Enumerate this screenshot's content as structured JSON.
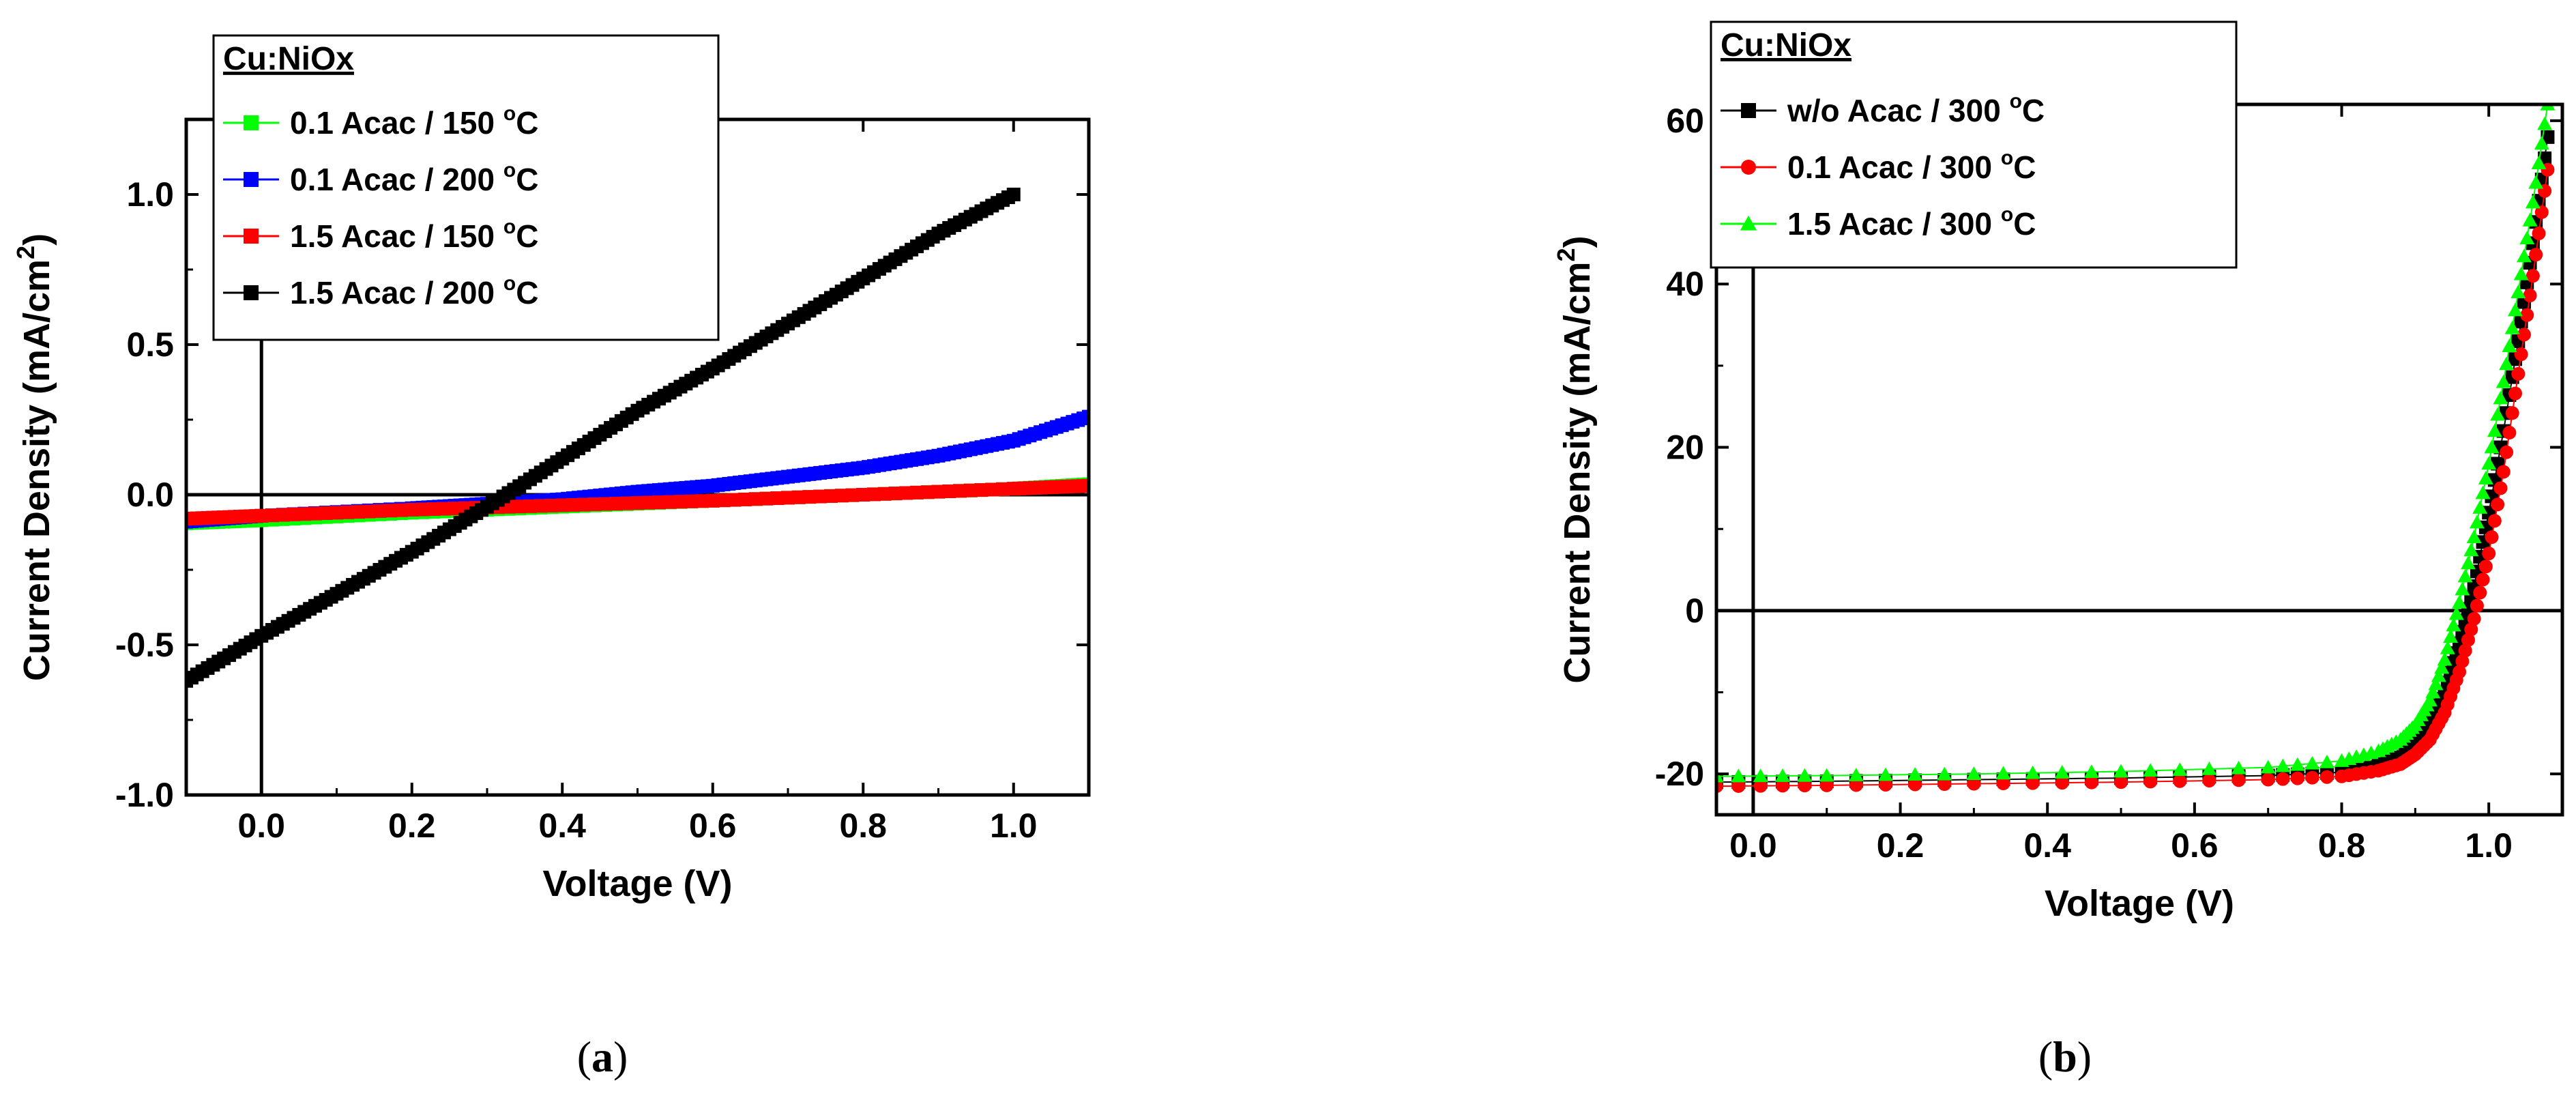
{
  "chart_data": [
    {
      "type": "line",
      "panel": "a",
      "xlabel": "Voltage (V)",
      "ylabel": "Current Density (mA/cm",
      "ylabel_sup": "2",
      "ylabel_close": ")",
      "xlim": [
        -0.1,
        1.1
      ],
      "ylim": [
        -1.0,
        1.25
      ],
      "xticks": [
        0.0,
        0.2,
        0.4,
        0.6,
        0.8,
        1.0
      ],
      "xtick_labels": [
        "0.0",
        "0.2",
        "0.4",
        "0.6",
        "0.8",
        "1.0"
      ],
      "yticks": [
        -1.0,
        -0.5,
        0.0,
        0.5,
        1.0
      ],
      "ytick_labels": [
        "-1.0",
        "-0.5",
        "0.0",
        "0.5",
        "1.0"
      ],
      "legend_title": "Cu:NiOx",
      "legend_position": "top-left",
      "series": [
        {
          "name": "0.1 Acac / 150 °C",
          "label_main": "0.1 Acac / 150 ",
          "label_sup": "o",
          "label_unit": "C",
          "color": "#00ff00",
          "marker": "square",
          "x": [
            -0.1,
            0.0,
            0.2,
            0.4,
            0.6,
            0.8,
            1.0,
            1.1
          ],
          "y": [
            -0.095,
            -0.085,
            -0.06,
            -0.04,
            -0.02,
            0.0,
            0.02,
            0.035
          ]
        },
        {
          "name": "0.1 Acac / 200 °C",
          "label_main": "0.1 Acac / 200 ",
          "label_sup": "o",
          "label_unit": "C",
          "color": "#0000ff",
          "marker": "square",
          "x": [
            -0.1,
            0.0,
            0.2,
            0.3,
            0.4,
            0.5,
            0.6,
            0.7,
            0.8,
            0.9,
            1.0,
            1.1
          ],
          "y": [
            -0.09,
            -0.07,
            -0.045,
            -0.03,
            -0.015,
            0.01,
            0.03,
            0.06,
            0.09,
            0.13,
            0.18,
            0.26
          ]
        },
        {
          "name": "1.5 Acac / 150 °C",
          "label_main": "1.5 Acac / 150 ",
          "label_sup": "o",
          "label_unit": "C",
          "color": "#ff0000",
          "marker": "square",
          "x": [
            -0.1,
            0.0,
            0.2,
            0.4,
            0.6,
            0.8,
            1.0,
            1.1
          ],
          "y": [
            -0.08,
            -0.07,
            -0.05,
            -0.035,
            -0.02,
            0.0,
            0.02,
            0.03
          ]
        },
        {
          "name": "1.5 Acac / 200 °C",
          "label_main": "1.5 Acac / 200 ",
          "label_sup": "o",
          "label_unit": "C",
          "color": "#000000",
          "marker": "square",
          "x": [
            -0.1,
            0.0,
            0.1,
            0.2,
            0.3,
            0.4,
            0.5,
            0.6,
            0.7,
            0.8,
            0.9,
            1.0
          ],
          "y": [
            -0.62,
            -0.47,
            -0.33,
            -0.19,
            -0.04,
            0.12,
            0.28,
            0.42,
            0.57,
            0.72,
            0.87,
            1.0
          ]
        }
      ]
    },
    {
      "type": "line",
      "panel": "b",
      "xlabel": "Voltage (V)",
      "ylabel": "Current Density (mA/cm",
      "ylabel_sup": "2",
      "ylabel_close": ")",
      "xlim": [
        -0.05,
        1.1
      ],
      "ylim": [
        -25,
        62
      ],
      "xticks": [
        0.0,
        0.2,
        0.4,
        0.6,
        0.8,
        1.0
      ],
      "xtick_labels": [
        "0.0",
        "0.2",
        "0.4",
        "0.6",
        "0.8",
        "1.0"
      ],
      "yticks": [
        -20,
        0,
        20,
        40,
        60
      ],
      "ytick_labels": [
        "-20",
        "0",
        "20",
        "40",
        "60"
      ],
      "legend_title": "Cu:NiOx",
      "legend_position": "top-left",
      "series": [
        {
          "name": "w/o Acac / 300 °C",
          "label_main": "w/o Acac / 300 ",
          "label_sup": "o",
          "label_unit": "C",
          "color": "#000000",
          "marker": "square",
          "x": [
            -0.05,
            0.1,
            0.3,
            0.5,
            0.7,
            0.8,
            0.85,
            0.88,
            0.9,
            0.92,
            0.94,
            0.96,
            0.98,
            1.0,
            1.02,
            1.04,
            1.06,
            1.08
          ],
          "y": [
            -21.0,
            -20.9,
            -20.7,
            -20.5,
            -20.2,
            -19.8,
            -19.0,
            -18.0,
            -16.5,
            -14.0,
            -10.0,
            -4.0,
            3.0,
            12.0,
            22.0,
            33.0,
            45.0,
            58.0
          ]
        },
        {
          "name": "0.1 Acac / 300 °C",
          "label_main": "0.1 Acac / 300 ",
          "label_sup": "o",
          "label_unit": "C",
          "color": "#ff0000",
          "marker": "circle",
          "x": [
            -0.05,
            0.1,
            0.3,
            0.5,
            0.7,
            0.8,
            0.85,
            0.88,
            0.9,
            0.92,
            0.94,
            0.96,
            0.98,
            1.0,
            1.02,
            1.04,
            1.06,
            1.08
          ],
          "y": [
            -21.5,
            -21.4,
            -21.2,
            -21.0,
            -20.7,
            -20.3,
            -19.6,
            -18.8,
            -17.6,
            -15.8,
            -12.5,
            -7.5,
            -1.0,
            7.0,
            17.0,
            29.0,
            41.0,
            54.0
          ]
        },
        {
          "name": "1.5 Acac / 300 °C",
          "label_main": "1.5 Acac / 300 ",
          "label_sup": "o",
          "label_unit": "C",
          "color": "#00ff00",
          "marker": "triangle",
          "x": [
            -0.05,
            0.1,
            0.3,
            0.5,
            0.7,
            0.8,
            0.85,
            0.88,
            0.9,
            0.92,
            0.94,
            0.96,
            0.98,
            1.0,
            1.02,
            1.04,
            1.06,
            1.08
          ],
          "y": [
            -20.3,
            -20.2,
            -20.0,
            -19.7,
            -19.2,
            -18.4,
            -17.2,
            -15.8,
            -14.0,
            -11.0,
            -6.0,
            1.0,
            9.0,
            18.0,
            28.0,
            39.0,
            50.0,
            62.0
          ]
        }
      ]
    }
  ],
  "captions": {
    "a_open": "(",
    "a_letter": "a",
    "a_close": ")",
    "b_open": "(",
    "b_letter": "b",
    "b_close": ")"
  }
}
